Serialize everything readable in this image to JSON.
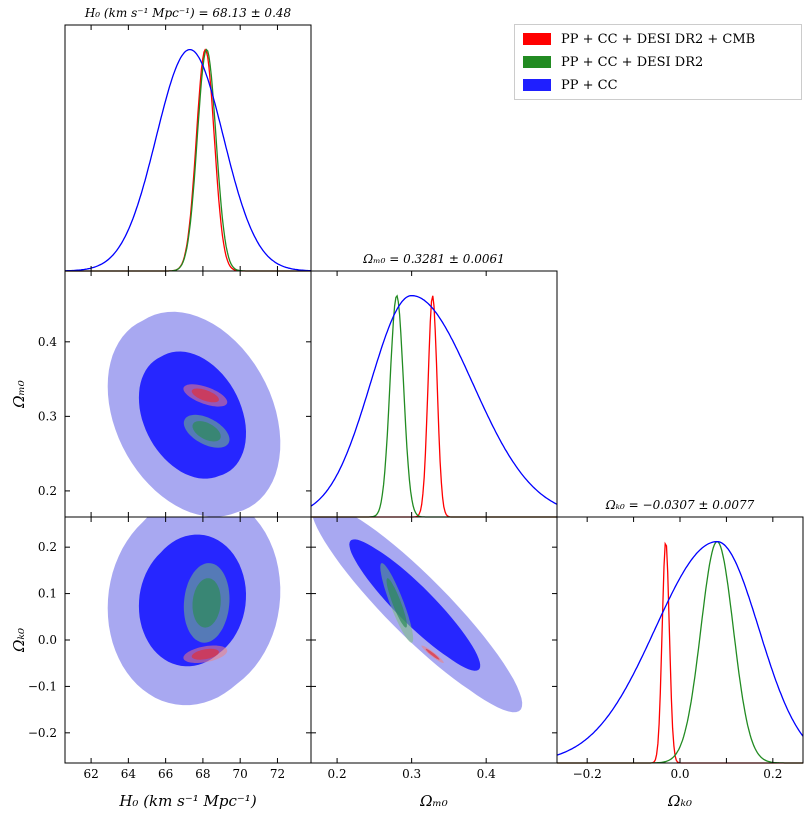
{
  "colors": {
    "red": "#ff0000",
    "green": "#228b22",
    "blue": "#0000ff",
    "blue_inner": "#1f1fff",
    "blue_outer": "#9999ee"
  },
  "legend": [
    {
      "label": "PP + CC + DESI DR2 + CMB",
      "color": "#ff0000"
    },
    {
      "label": "PP + CC + DESI DR2",
      "color": "#228b22"
    },
    {
      "label": "PP + CC",
      "color": "#1f1fff"
    }
  ],
  "chart_data": {
    "type": "corner",
    "parameters": [
      "H0",
      "Om0",
      "Ok0"
    ],
    "titles": {
      "H0": "H₀ (km s⁻¹ Mpc⁻¹) = 68.13 ± 0.48",
      "Om0": "Ωₘ₀ = 0.3281 ± 0.0061",
      "Ok0": "Ωₖ₀ = −0.0307 ± 0.0077"
    },
    "axis_labels": {
      "H0": "H₀ (km s⁻¹ Mpc⁻¹)",
      "Om0": "Ωₘ₀",
      "Ok0": "Ωₖ₀"
    },
    "ranges": {
      "H0": [
        60.6,
        73.8
      ],
      "Om0": [
        0.165,
        0.495
      ],
      "Ok0": [
        -0.265,
        0.265
      ]
    },
    "ticks": {
      "H0": [
        62,
        64,
        66,
        68,
        70,
        72
      ],
      "Om0": [
        0.2,
        0.3,
        0.4
      ],
      "Ok0": [
        -0.2,
        -0.1,
        0.0,
        0.1,
        0.2
      ]
    },
    "tick_labels": {
      "H0": [
        "62",
        "64",
        "66",
        "68",
        "70",
        "72"
      ],
      "Om0": [
        "0.2",
        "0.3",
        "0.4"
      ],
      "Ok0_x": [
        "−0.2",
        "0.0",
        "0.2"
      ],
      "Ok0_y": [
        "−0.2",
        "−0.1",
        "0.0",
        "0.1",
        "0.2"
      ]
    },
    "series": [
      {
        "name": "PP + CC + DESI DR2 + CMB",
        "color": "red",
        "mean": {
          "H0": 68.13,
          "Om0": 0.3281,
          "Ok0": -0.0307
        },
        "sigma": {
          "H0": 0.48,
          "Om0": 0.0061,
          "Ok0": 0.0077
        },
        "corr": {
          "H0_Om0": -0.6,
          "H0_Ok0": 0.4,
          "Om0_Ok0": -0.95
        }
      },
      {
        "name": "PP + CC + DESI DR2",
        "color": "green",
        "mean": {
          "H0": 68.2,
          "Om0": 0.28,
          "Ok0": 0.08
        },
        "sigma": {
          "H0": 0.5,
          "Om0": 0.009,
          "Ok0": 0.035
        },
        "corr": {
          "H0_Om0": -0.5,
          "H0_Ok0": 0.1,
          "Om0_Ok0": -0.9
        }
      },
      {
        "name": "PP + CC",
        "color": "blue",
        "mean": {
          "H0": 67.3,
          "Om0": 0.3,
          "Ok0": 0.08
        },
        "sigma": {
          "H0": 1.8,
          "Om0": 0.055,
          "Ok0": 0.09
        },
        "corr": {
          "H0_Om0": -0.3,
          "H0_Ok0": 0.05,
          "Om0_Ok0": -0.92
        }
      }
    ]
  }
}
